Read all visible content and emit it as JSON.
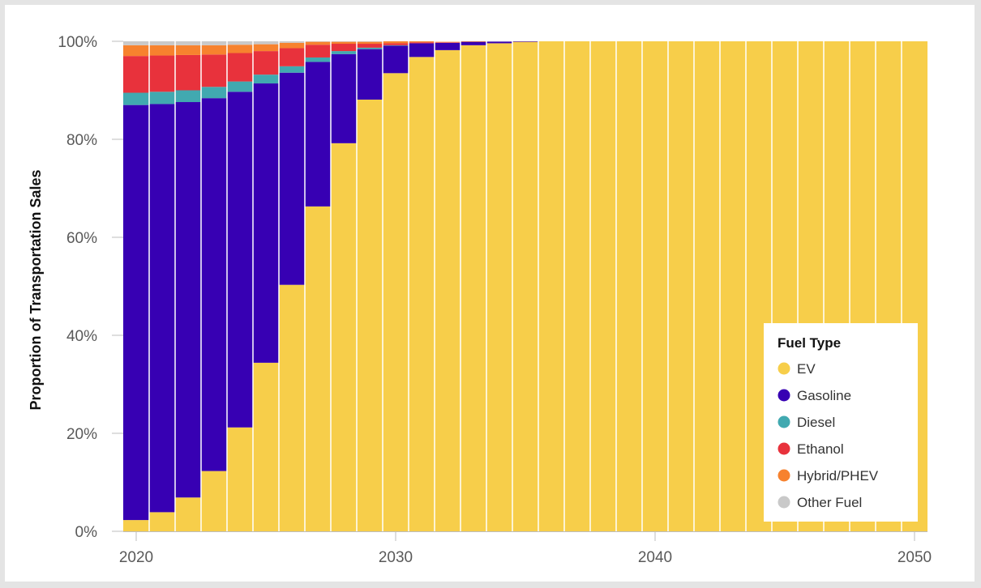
{
  "chart_data": {
    "type": "bar",
    "stacked": true,
    "ylabel": "Proportion of Transportation Sales",
    "xlabel": "",
    "x": [
      2020,
      2021,
      2022,
      2023,
      2024,
      2025,
      2026,
      2027,
      2028,
      2029,
      2030,
      2031,
      2032,
      2033,
      2034,
      2035,
      2036,
      2037,
      2038,
      2039,
      2040,
      2041,
      2042,
      2043,
      2044,
      2045,
      2046,
      2047,
      2048,
      2049,
      2050
    ],
    "xlim": [
      2020,
      2050
    ],
    "ylim": [
      0,
      100
    ],
    "x_ticks": [
      "2020",
      "2030",
      "2040",
      "2050"
    ],
    "x_tick_values": [
      2020,
      2030,
      2040,
      2050
    ],
    "y_ticks": [
      "0%",
      "20%",
      "40%",
      "60%",
      "80%",
      "100%"
    ],
    "y_tick_values": [
      0,
      20,
      40,
      60,
      80,
      100
    ],
    "legend": {
      "title": "Fuel Type",
      "position": "bottom-right"
    },
    "series": [
      {
        "name": "EV",
        "color": "#f7ce4a",
        "values": [
          2.3,
          3.9,
          6.9,
          12.3,
          21.2,
          34.4,
          50.3,
          66.3,
          79.2,
          88.1,
          93.5,
          96.8,
          98.2,
          99.2,
          99.6,
          99.9,
          100,
          100,
          100,
          100,
          100,
          100,
          100,
          100,
          100,
          100,
          100,
          100,
          100,
          100,
          100
        ]
      },
      {
        "name": "Gasoline",
        "color": "#3700b3",
        "values": [
          84.7,
          83.3,
          80.7,
          76.1,
          68.5,
          57.0,
          43.3,
          29.5,
          18.2,
          10.3,
          5.6,
          2.8,
          1.5,
          0.7,
          0.35,
          0.1,
          0,
          0,
          0,
          0,
          0,
          0,
          0,
          0,
          0,
          0,
          0,
          0,
          0,
          0,
          0
        ]
      },
      {
        "name": "Diesel",
        "color": "#41a9b0",
        "values": [
          2.5,
          2.5,
          2.4,
          2.3,
          2.1,
          1.8,
          1.3,
          0.9,
          0.6,
          0.3,
          0.1,
          0,
          0,
          0,
          0,
          0,
          0,
          0,
          0,
          0,
          0,
          0,
          0,
          0,
          0,
          0,
          0,
          0,
          0,
          0,
          0
        ]
      },
      {
        "name": "Ethanol",
        "color": "#e8323c",
        "values": [
          7.5,
          7.4,
          7.2,
          6.6,
          5.8,
          4.8,
          3.7,
          2.6,
          1.5,
          0.8,
          0.4,
          0.2,
          0.1,
          0,
          0,
          0,
          0,
          0,
          0,
          0,
          0,
          0,
          0,
          0,
          0,
          0,
          0,
          0,
          0,
          0,
          0
        ]
      },
      {
        "name": "Hybrid/PHEV",
        "color": "#f7822e",
        "values": [
          2.2,
          2.1,
          2.0,
          1.9,
          1.7,
          1.4,
          1.1,
          0.6,
          0.4,
          0.4,
          0.4,
          0.2,
          0.1,
          0.1,
          0,
          0,
          0,
          0,
          0,
          0,
          0,
          0,
          0,
          0,
          0,
          0,
          0,
          0,
          0,
          0,
          0
        ]
      },
      {
        "name": "Other Fuel",
        "color": "#c9c9c9",
        "values": [
          0.8,
          0.8,
          0.8,
          0.8,
          0.7,
          0.6,
          0.3,
          0.1,
          0.1,
          0.1,
          0,
          0,
          0,
          0,
          0.05,
          0,
          0,
          0,
          0,
          0,
          0,
          0,
          0,
          0,
          0,
          0,
          0,
          0,
          0,
          0,
          0
        ]
      }
    ]
  }
}
